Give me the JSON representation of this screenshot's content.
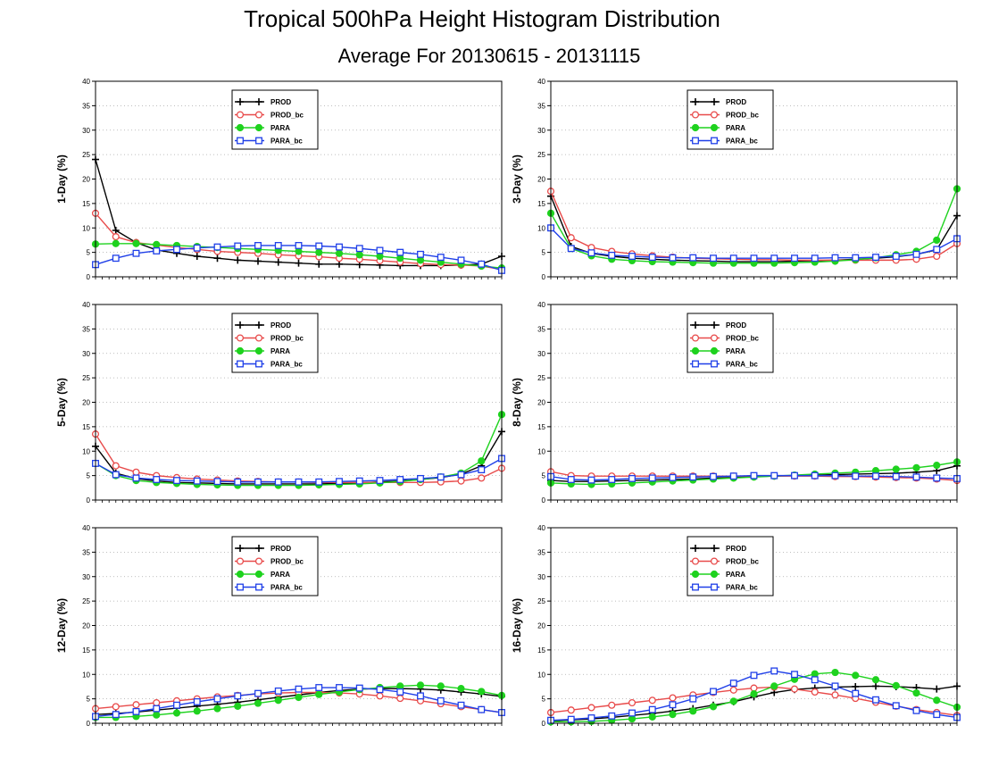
{
  "title": "Tropical 500hPa Height Histogram Distribution",
  "subtitle": "Average For 20130615 - 20131115",
  "colors": {
    "PROD": "#000000",
    "PROD_bc": "#e84a4a",
    "PARA": "#1ed21e",
    "PARA_bc": "#1f3fe8",
    "grid": "#aaaaaa"
  },
  "chart_data": [
    {
      "type": "line",
      "ylabel": "1-Day (%)",
      "ylim": [
        0,
        40
      ],
      "yticks": [
        0,
        5,
        10,
        15,
        20,
        25,
        30,
        35,
        40
      ],
      "grid": "dotted",
      "legend_position": "top-center",
      "x": [
        1,
        2,
        3,
        4,
        5,
        6,
        7,
        8,
        9,
        10,
        11,
        12,
        13,
        14,
        15,
        16,
        17,
        18,
        19,
        20,
        21
      ],
      "series": [
        {
          "name": "PROD",
          "marker": "plus",
          "values": [
            24,
            9.5,
            7,
            5.5,
            4.8,
            4.2,
            3.8,
            3.4,
            3.2,
            3,
            2.8,
            2.6,
            2.6,
            2.5,
            2.4,
            2.3,
            2.3,
            2.3,
            2.4,
            2.6,
            4.2
          ]
        },
        {
          "name": "PROD_bc",
          "marker": "circle",
          "values": [
            13,
            8.2,
            7,
            6.5,
            6,
            5.6,
            5.2,
            5,
            4.8,
            4.5,
            4.3,
            4.1,
            3.8,
            3.6,
            3.3,
            3,
            2.7,
            2.5,
            2.4,
            2.2,
            1.5
          ]
        },
        {
          "name": "PARA",
          "marker": "filled-circle",
          "values": [
            6.7,
            6.8,
            6.8,
            6.6,
            6.4,
            6.2,
            6,
            5.8,
            5.6,
            5.4,
            5.2,
            5,
            4.8,
            4.5,
            4.2,
            3.8,
            3.4,
            3,
            2.6,
            2.2,
            1.8
          ]
        },
        {
          "name": "PARA_bc",
          "marker": "square",
          "values": [
            2.5,
            3.8,
            4.8,
            5.3,
            5.6,
            5.9,
            6.1,
            6.3,
            6.4,
            6.4,
            6.4,
            6.3,
            6.1,
            5.8,
            5.4,
            5,
            4.6,
            4,
            3.4,
            2.6,
            1.3
          ]
        }
      ]
    },
    {
      "type": "line",
      "ylabel": "3-Day (%)",
      "ylim": [
        0,
        40
      ],
      "yticks": [
        0,
        5,
        10,
        15,
        20,
        25,
        30,
        35,
        40
      ],
      "grid": "dotted",
      "legend_position": "top-center",
      "x": [
        1,
        2,
        3,
        4,
        5,
        6,
        7,
        8,
        9,
        10,
        11,
        12,
        13,
        14,
        15,
        16,
        17,
        18,
        19,
        20,
        21
      ],
      "series": [
        {
          "name": "PROD",
          "marker": "plus",
          "values": [
            16.5,
            6.2,
            4.8,
            4.2,
            3.8,
            3.6,
            3.4,
            3.3,
            3.2,
            3.1,
            3.1,
            3.1,
            3.2,
            3.3,
            3.4,
            3.6,
            3.8,
            4.1,
            4.6,
            5.5,
            12.5
          ]
        },
        {
          "name": "PROD_bc",
          "marker": "circle",
          "values": [
            17.5,
            8,
            6,
            5.2,
            4.7,
            4.3,
            4,
            3.8,
            3.7,
            3.6,
            3.5,
            3.5,
            3.4,
            3.4,
            3.4,
            3.4,
            3.4,
            3.4,
            3.6,
            4.2,
            6.8
          ]
        },
        {
          "name": "PARA",
          "marker": "filled-circle",
          "values": [
            13,
            5.8,
            4.3,
            3.6,
            3.3,
            3.1,
            3,
            2.9,
            2.8,
            2.8,
            2.8,
            2.8,
            2.9,
            3,
            3.2,
            3.5,
            3.9,
            4.5,
            5.2,
            7.5,
            18
          ]
        },
        {
          "name": "PARA_bc",
          "marker": "square",
          "values": [
            10,
            5.8,
            4.9,
            4.4,
            4.2,
            4,
            3.9,
            3.9,
            3.8,
            3.8,
            3.8,
            3.8,
            3.8,
            3.8,
            3.9,
            3.9,
            4,
            4.2,
            4.6,
            5.6,
            7.8
          ]
        }
      ]
    },
    {
      "type": "line",
      "ylabel": "5-Day (%)",
      "ylim": [
        0,
        40
      ],
      "yticks": [
        0,
        5,
        10,
        15,
        20,
        25,
        30,
        35,
        40
      ],
      "grid": "dotted",
      "legend_position": "top-center",
      "x": [
        1,
        2,
        3,
        4,
        5,
        6,
        7,
        8,
        9,
        10,
        11,
        12,
        13,
        14,
        15,
        16,
        17,
        18,
        19,
        20,
        21
      ],
      "series": [
        {
          "name": "PROD",
          "marker": "plus",
          "values": [
            11,
            5.5,
            4.4,
            3.9,
            3.6,
            3.5,
            3.4,
            3.3,
            3.3,
            3.3,
            3.3,
            3.3,
            3.4,
            3.5,
            3.7,
            3.9,
            4.2,
            4.6,
            5.3,
            7,
            14
          ]
        },
        {
          "name": "PROD_bc",
          "marker": "circle",
          "values": [
            13.5,
            7,
            5.7,
            5,
            4.6,
            4.3,
            4.1,
            3.9,
            3.8,
            3.7,
            3.7,
            3.6,
            3.6,
            3.6,
            3.6,
            3.6,
            3.6,
            3.7,
            3.9,
            4.5,
            6.5
          ]
        },
        {
          "name": "PARA",
          "marker": "filled-circle",
          "values": [
            7.5,
            5,
            4,
            3.6,
            3.4,
            3.2,
            3.1,
            3,
            3,
            3,
            3,
            3.1,
            3.2,
            3.3,
            3.5,
            3.8,
            4.2,
            4.7,
            5.5,
            8,
            17.5
          ]
        },
        {
          "name": "PARA_bc",
          "marker": "square",
          "values": [
            7.5,
            5.2,
            4.5,
            4.2,
            4,
            3.9,
            3.8,
            3.7,
            3.7,
            3.7,
            3.7,
            3.7,
            3.8,
            3.9,
            4,
            4.2,
            4.4,
            4.7,
            5.2,
            6.2,
            8.5
          ]
        }
      ]
    },
    {
      "type": "line",
      "ylabel": "8-Day (%)",
      "ylim": [
        0,
        40
      ],
      "yticks": [
        0,
        5,
        10,
        15,
        20,
        25,
        30,
        35,
        40
      ],
      "grid": "dotted",
      "legend_position": "top-center",
      "x": [
        1,
        2,
        3,
        4,
        5,
        6,
        7,
        8,
        9,
        10,
        11,
        12,
        13,
        14,
        15,
        16,
        17,
        18,
        19,
        20,
        21
      ],
      "series": [
        {
          "name": "PROD",
          "marker": "plus",
          "values": [
            4,
            3.8,
            3.8,
            3.9,
            4,
            4.1,
            4.2,
            4.3,
            4.5,
            4.6,
            4.8,
            4.9,
            5,
            5.1,
            5.2,
            5.3,
            5.4,
            5.5,
            5.7,
            6,
            7
          ]
        },
        {
          "name": "PROD_bc",
          "marker": "circle",
          "values": [
            5.8,
            5,
            4.9,
            4.9,
            4.9,
            4.9,
            4.9,
            4.9,
            4.9,
            4.9,
            4.9,
            4.9,
            4.9,
            4.9,
            4.8,
            4.8,
            4.7,
            4.6,
            4.5,
            4.3,
            4
          ]
        },
        {
          "name": "PARA",
          "marker": "filled-circle",
          "values": [
            3.5,
            3.3,
            3.2,
            3.3,
            3.5,
            3.7,
            3.9,
            4.1,
            4.3,
            4.5,
            4.7,
            4.9,
            5.1,
            5.3,
            5.5,
            5.7,
            6,
            6.3,
            6.6,
            7.1,
            7.8
          ]
        },
        {
          "name": "PARA_bc",
          "marker": "square",
          "values": [
            4.8,
            4.2,
            4.1,
            4.2,
            4.4,
            4.5,
            4.6,
            4.7,
            4.8,
            4.9,
            5,
            5,
            5,
            5,
            5,
            4.9,
            4.9,
            4.8,
            4.7,
            4.5,
            4.4
          ]
        }
      ]
    },
    {
      "type": "line",
      "ylabel": "12-Day (%)",
      "ylim": [
        0,
        40
      ],
      "yticks": [
        0,
        5,
        10,
        15,
        20,
        25,
        30,
        35,
        40
      ],
      "grid": "dotted",
      "legend_position": "top-center",
      "x": [
        1,
        2,
        3,
        4,
        5,
        6,
        7,
        8,
        9,
        10,
        11,
        12,
        13,
        14,
        15,
        16,
        17,
        18,
        19,
        20,
        21
      ],
      "series": [
        {
          "name": "PROD",
          "marker": "plus",
          "values": [
            1.8,
            2,
            2.3,
            2.7,
            3.1,
            3.5,
            3.9,
            4.3,
            4.8,
            5.3,
            5.8,
            6.3,
            6.7,
            7,
            7.1,
            7.1,
            7,
            6.8,
            6.4,
            6,
            5.5
          ]
        },
        {
          "name": "PROD_bc",
          "marker": "circle",
          "values": [
            3,
            3.4,
            3.8,
            4.2,
            4.6,
            5,
            5.4,
            5.7,
            6,
            6.2,
            6.3,
            6.3,
            6.2,
            6,
            5.6,
            5.1,
            4.6,
            4,
            3.4,
            2.8,
            2.2
          ]
        },
        {
          "name": "PARA",
          "marker": "filled-circle",
          "values": [
            1.2,
            1.2,
            1.4,
            1.7,
            2.1,
            2.5,
            3,
            3.5,
            4.1,
            4.7,
            5.3,
            5.9,
            6.4,
            6.9,
            7.3,
            7.6,
            7.8,
            7.6,
            7.1,
            6.5,
            5.7
          ]
        },
        {
          "name": "PARA_bc",
          "marker": "square",
          "values": [
            1.4,
            1.8,
            2.4,
            3,
            3.7,
            4.4,
            5,
            5.6,
            6.1,
            6.6,
            7,
            7.3,
            7.3,
            7.2,
            6.9,
            6.4,
            5.6,
            4.6,
            3.7,
            2.8,
            2.2
          ]
        }
      ]
    },
    {
      "type": "line",
      "ylabel": "16-Day (%)",
      "ylim": [
        0,
        40
      ],
      "yticks": [
        0,
        5,
        10,
        15,
        20,
        25,
        30,
        35,
        40
      ],
      "grid": "dotted",
      "legend_position": "top-center",
      "x": [
        1,
        2,
        3,
        4,
        5,
        6,
        7,
        8,
        9,
        10,
        11,
        12,
        13,
        14,
        15,
        16,
        17,
        18,
        19,
        20,
        21
      ],
      "series": [
        {
          "name": "PROD",
          "marker": "plus",
          "values": [
            0.5,
            0.7,
            0.9,
            1.2,
            1.6,
            2,
            2.5,
            3,
            3.7,
            4.4,
            5.4,
            6.3,
            6.9,
            7.2,
            7.4,
            7.5,
            7.6,
            7.5,
            7.3,
            7,
            7.6
          ]
        },
        {
          "name": "PROD_bc",
          "marker": "circle",
          "values": [
            2.2,
            2.7,
            3.2,
            3.7,
            4.2,
            4.7,
            5.2,
            5.8,
            6.3,
            6.8,
            7.2,
            7.4,
            7,
            6.4,
            5.8,
            5.1,
            4.3,
            3.5,
            2.8,
            2.2,
            1.6
          ]
        },
        {
          "name": "PARA",
          "marker": "filled-circle",
          "values": [
            0.3,
            0.3,
            0.4,
            0.6,
            0.9,
            1.3,
            1.8,
            2.5,
            3.4,
            4.5,
            6,
            7.6,
            9,
            10.1,
            10.4,
            9.8,
            8.9,
            7.7,
            6.2,
            4.7,
            3.3
          ]
        },
        {
          "name": "PARA_bc",
          "marker": "square",
          "values": [
            0.6,
            0.8,
            1.1,
            1.5,
            2.1,
            2.8,
            3.8,
            5,
            6.5,
            8.2,
            9.8,
            10.7,
            10,
            8.9,
            7.6,
            6.1,
            4.8,
            3.6,
            2.6,
            1.8,
            1.2
          ]
        }
      ]
    }
  ]
}
